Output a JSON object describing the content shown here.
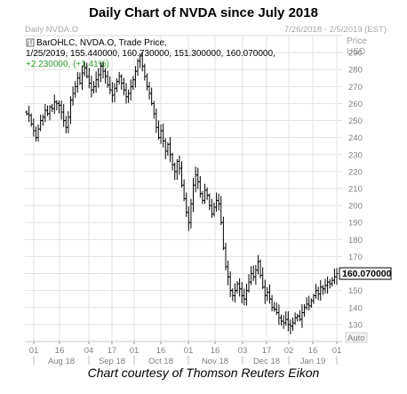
{
  "page_title": "Daily Chart of NVDA since July 2018",
  "caption": "Chart courtesy of Thomson Reuters Eikon",
  "header": {
    "left": "Daily NVDA.O",
    "right": "7/26/2018 - 2/5/2019 (EST)"
  },
  "info": {
    "line1": "BarOHLC, NVDA.O, Trade Price,",
    "line2": "1/25/2019, 155.440000, 160.730000, 151.300000, 160.070000,",
    "line3": "+2.230000, (+1.41%)"
  },
  "axis_right": {
    "title1": "Price",
    "title2": "USD",
    "auto_label": "Auto"
  },
  "colors": {
    "bars": "#000000",
    "grid": "#e2e2e2",
    "change": "#2e9e2e",
    "label_box": "#ffffff"
  },
  "chart_data": {
    "type": "ohlc",
    "title": "Daily Chart of NVDA since July 2018",
    "date_range": [
      "2018-07-26",
      "2019-02-05"
    ],
    "ylim": [
      120,
      300
    ],
    "yticks": [
      130,
      140,
      150,
      160,
      170,
      180,
      190,
      200,
      210,
      220,
      230,
      240,
      250,
      260,
      270,
      280,
      290
    ],
    "last_price_label": "160.070000",
    "day_ticks": [
      "01",
      "16",
      "04",
      "17",
      "01",
      "16",
      "01",
      "16",
      "03",
      "17",
      "02",
      "16",
      "01"
    ],
    "month_labels": [
      "Aug 18",
      "Sep 18",
      "Oct 18",
      "Nov 18",
      "Dec 18",
      "Jan 19"
    ],
    "closes": [
      254,
      253,
      248,
      244,
      240,
      245,
      250,
      252,
      256,
      254,
      258,
      257,
      261,
      260,
      259,
      255,
      250,
      246,
      252,
      262,
      266,
      270,
      275,
      272,
      278,
      281,
      276,
      272,
      268,
      270,
      274,
      277,
      282,
      279,
      276,
      271,
      268,
      265,
      269,
      273,
      276,
      272,
      268,
      264,
      266,
      270,
      274,
      279,
      285,
      288,
      282,
      276,
      270,
      266,
      260,
      254,
      246,
      240,
      244,
      238,
      232,
      236,
      230,
      224,
      220,
      226,
      222,
      212,
      204,
      196,
      190,
      201,
      212,
      218,
      214,
      207,
      203,
      209,
      206,
      200,
      195,
      199,
      203,
      201,
      190,
      175,
      164,
      158,
      150,
      147,
      150,
      154,
      151,
      147,
      145,
      150,
      155,
      160,
      158,
      162,
      167,
      159,
      152,
      147,
      149,
      145,
      140,
      139,
      137,
      134,
      132,
      131,
      133,
      130,
      129,
      131,
      134,
      135,
      133,
      137,
      140,
      142,
      141,
      144,
      147,
      150,
      148,
      152,
      151,
      153,
      155,
      154,
      156,
      158,
      160
    ]
  }
}
